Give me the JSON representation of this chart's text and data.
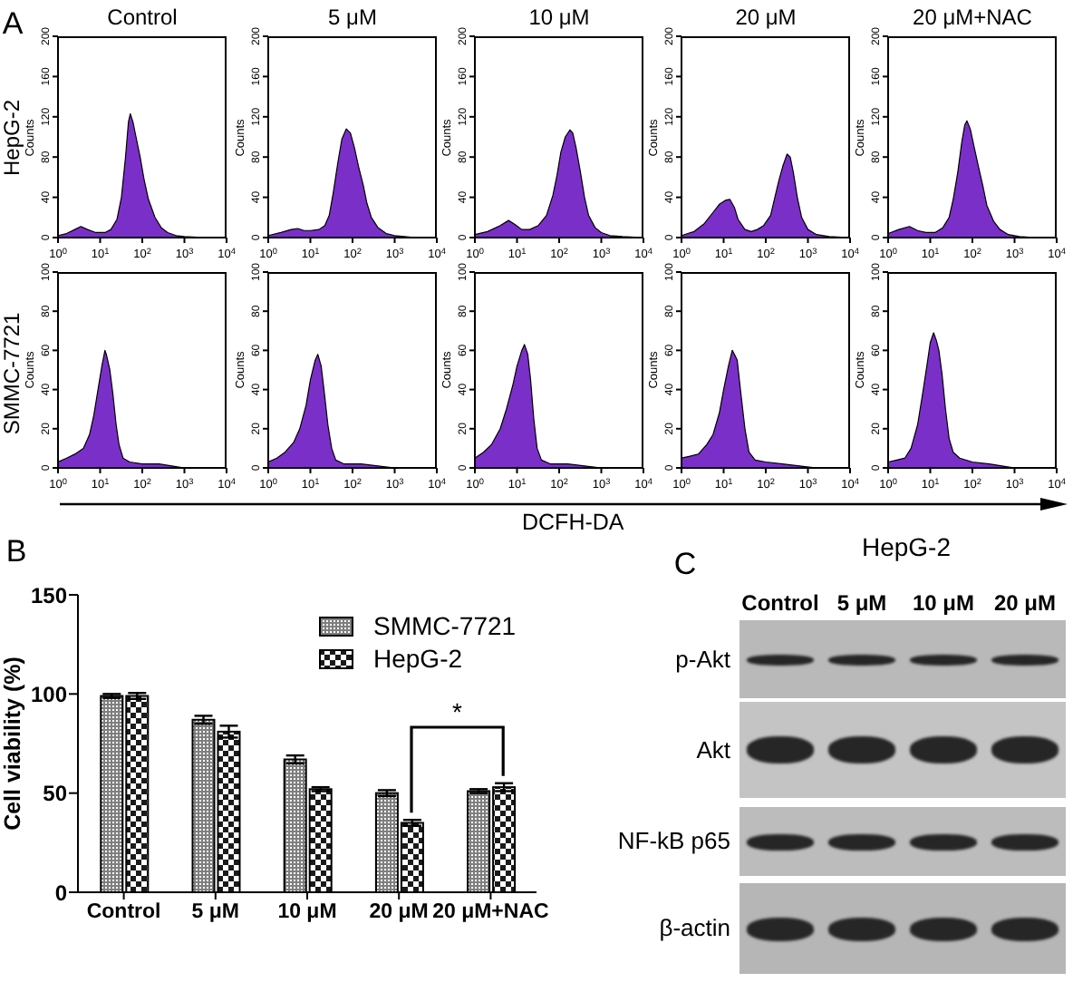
{
  "chart_data": [
    {
      "type": "area",
      "title": "Control",
      "x": [
        1,
        1.6,
        2.5,
        3.5,
        5,
        7.9,
        13,
        18,
        25,
        32,
        40,
        47,
        52,
        60,
        71,
        89,
        110,
        140,
        200,
        280,
        400,
        630,
        1000,
        3200,
        10000
      ],
      "values": [
        2,
        4,
        8,
        11,
        8,
        5,
        5,
        8,
        18,
        40,
        80,
        115,
        123,
        115,
        100,
        80,
        58,
        38,
        20,
        10,
        5,
        2,
        1,
        0,
        0
      ],
      "color": "#7b2fc9",
      "xlim": [
        1,
        10000
      ],
      "xticks": [
        {
          "value": 1,
          "label": "10$^{0}$"
        },
        {
          "value": 10,
          "label": "10$^{1}$"
        },
        {
          "value": 100,
          "label": "10$^{2}$"
        },
        {
          "value": 1000,
          "label": "10$^{3}$"
        },
        {
          "value": 10000,
          "label": "10$^{4}$"
        }
      ],
      "ylim": [
        0,
        200
      ],
      "yticks": [
        0,
        40,
        80,
        120,
        160,
        200
      ],
      "ylabel": "Counts",
      "log": "x",
      "annotations": [
        "A",
        "HepG-2"
      ]
    },
    {
      "type": "area",
      "title": "5 μM",
      "x": [
        1,
        2,
        3.5,
        5,
        7.1,
        10,
        16,
        22,
        28,
        35,
        45,
        56,
        71,
        89,
        110,
        140,
        180,
        220,
        280,
        400,
        630,
        1000,
        3200,
        10000
      ],
      "values": [
        2,
        5,
        8,
        9,
        7,
        7,
        8,
        12,
        22,
        45,
        75,
        98,
        108,
        104,
        90,
        70,
        52,
        34,
        20,
        10,
        4,
        2,
        0,
        0
      ],
      "color": "#7b2fc9",
      "xlim": [
        1,
        10000
      ],
      "xticks": [
        {
          "value": 1,
          "label": "10$^{0}$"
        },
        {
          "value": 10,
          "label": "10$^{1}$"
        },
        {
          "value": 100,
          "label": "10$^{2}$"
        },
        {
          "value": 1000,
          "label": "10$^{3}$"
        },
        {
          "value": 10000,
          "label": "10$^{4}$"
        }
      ],
      "ylim": [
        0,
        200
      ],
      "yticks": [
        0,
        40,
        80,
        120,
        160,
        200
      ],
      "ylabel": "Counts",
      "log": "x"
    },
    {
      "type": "area",
      "title": "10 μM",
      "x": [
        1,
        2,
        4,
        6.3,
        8.9,
        13,
        20,
        32,
        50,
        71,
        89,
        110,
        140,
        180,
        210,
        250,
        320,
        400,
        500,
        710,
        1000,
        1600,
        3200,
        10000
      ],
      "values": [
        3,
        6,
        12,
        17,
        13,
        8,
        8,
        12,
        22,
        42,
        62,
        85,
        100,
        107,
        104,
        90,
        65,
        40,
        22,
        10,
        5,
        2,
        1,
        0
      ],
      "color": "#7b2fc9",
      "xlim": [
        1,
        10000
      ],
      "xticks": [
        {
          "value": 1,
          "label": "10$^{0}$"
        },
        {
          "value": 10,
          "label": "10$^{1}$"
        },
        {
          "value": 100,
          "label": "10$^{2}$"
        },
        {
          "value": 1000,
          "label": "10$^{3}$"
        },
        {
          "value": 10000,
          "label": "10$^{4}$"
        }
      ],
      "ylim": [
        0,
        200
      ],
      "yticks": [
        0,
        40,
        80,
        120,
        160,
        200
      ],
      "ylabel": "Counts",
      "log": "x"
    },
    {
      "type": "area",
      "title": "20 μM",
      "x": [
        1,
        2,
        3.5,
        5.6,
        7.9,
        11,
        14,
        18,
        22,
        32,
        45,
        63,
        89,
        130,
        160,
        200,
        250,
        320,
        380,
        450,
        560,
        710,
        1000,
        1600,
        3200,
        10000
      ],
      "values": [
        2,
        6,
        14,
        25,
        33,
        37,
        38,
        30,
        18,
        8,
        6,
        8,
        12,
        22,
        38,
        55,
        70,
        83,
        80,
        65,
        40,
        20,
        8,
        3,
        1,
        0
      ],
      "color": "#7b2fc9",
      "xlim": [
        1,
        10000
      ],
      "xticks": [
        {
          "value": 1,
          "label": "10$^{0}$"
        },
        {
          "value": 10,
          "label": "10$^{1}$"
        },
        {
          "value": 100,
          "label": "10$^{2}$"
        },
        {
          "value": 1000,
          "label": "10$^{3}$"
        },
        {
          "value": 10000,
          "label": "10$^{4}$"
        }
      ],
      "ylim": [
        0,
        200
      ],
      "yticks": [
        0,
        40,
        80,
        120,
        160,
        200
      ],
      "ylabel": "Counts",
      "log": "x"
    },
    {
      "type": "area",
      "title": "20 μM+NAC",
      "x": [
        1,
        1.8,
        3.2,
        5,
        7.9,
        13,
        20,
        28,
        35,
        45,
        56,
        66,
        74,
        89,
        110,
        140,
        180,
        220,
        320,
        450,
        710,
        1300,
        3200,
        10000
      ],
      "values": [
        4,
        8,
        11,
        7,
        5,
        5,
        10,
        20,
        38,
        65,
        95,
        112,
        116,
        108,
        90,
        70,
        50,
        32,
        16,
        8,
        3,
        1,
        0,
        0
      ],
      "color": "#7b2fc9",
      "xlim": [
        1,
        10000
      ],
      "xticks": [
        {
          "value": 1,
          "label": "10$^{0}$"
        },
        {
          "value": 10,
          "label": "10$^{1}$"
        },
        {
          "value": 100,
          "label": "10$^{2}$"
        },
        {
          "value": 1000,
          "label": "10$^{3}$"
        },
        {
          "value": 10000,
          "label": "10$^{4}$"
        }
      ],
      "ylim": [
        0,
        200
      ],
      "yticks": [
        0,
        40,
        80,
        120,
        160,
        200
      ],
      "ylabel": "Counts",
      "log": "x"
    },
    {
      "type": "area",
      "x": [
        1,
        1.6,
        2.5,
        4,
        5.6,
        7.1,
        8.9,
        11,
        13,
        14,
        17,
        20,
        24,
        28,
        35,
        50,
        100,
        250,
        500,
        1000,
        10000
      ],
      "values": [
        3,
        5,
        7,
        10,
        17,
        27,
        40,
        52,
        60,
        58,
        50,
        38,
        22,
        12,
        5,
        3,
        2,
        2,
        1,
        0,
        0
      ],
      "color": "#7b2fc9",
      "xlim": [
        1,
        10000
      ],
      "xticks": [
        {
          "value": 1,
          "label": "10$^{0}$"
        },
        {
          "value": 10,
          "label": "10$^{1}$"
        },
        {
          "value": 100,
          "label": "10$^{2}$"
        },
        {
          "value": 1000,
          "label": "10$^{3}$"
        },
        {
          "value": 10000,
          "label": "10$^{4}$"
        }
      ],
      "ylim": [
        0,
        100
      ],
      "yticks": [
        0,
        20,
        40,
        60,
        80,
        100
      ],
      "ylabel": "Counts",
      "log": "x",
      "annotations": [
        "SMMC-7721"
      ]
    },
    {
      "type": "area",
      "x": [
        1,
        1.6,
        2.5,
        4,
        5.6,
        7.9,
        10,
        13,
        15,
        18,
        21,
        26,
        32,
        40,
        63,
        160,
        400,
        1000,
        10000
      ],
      "values": [
        3,
        5,
        8,
        13,
        20,
        32,
        45,
        55,
        58,
        52,
        40,
        22,
        10,
        4,
        2,
        2,
        1,
        0,
        0
      ],
      "color": "#7b2fc9",
      "xlim": [
        1,
        10000
      ],
      "xticks": [
        {
          "value": 1,
          "label": "10$^{0}$"
        },
        {
          "value": 10,
          "label": "10$^{1}$"
        },
        {
          "value": 100,
          "label": "10$^{2}$"
        },
        {
          "value": 1000,
          "label": "10$^{3}$"
        },
        {
          "value": 10000,
          "label": "10$^{4}$"
        }
      ],
      "ylim": [
        0,
        100
      ],
      "yticks": [
        0,
        20,
        40,
        60,
        80,
        100
      ],
      "ylabel": "Counts",
      "log": "x"
    },
    {
      "type": "area",
      "x": [
        1,
        1.6,
        2.5,
        4,
        5.6,
        7.9,
        10,
        13,
        15,
        18,
        21,
        25,
        30,
        38,
        63,
        160,
        400,
        1000,
        10000
      ],
      "values": [
        5,
        8,
        12,
        20,
        30,
        42,
        52,
        60,
        63,
        58,
        45,
        25,
        10,
        4,
        2,
        2,
        1,
        0,
        0
      ],
      "color": "#7b2fc9",
      "xlim": [
        1,
        10000
      ],
      "xticks": [
        {
          "value": 1,
          "label": "10$^{0}$"
        },
        {
          "value": 10,
          "label": "10$^{1}$"
        },
        {
          "value": 100,
          "label": "10$^{2}$"
        },
        {
          "value": 1000,
          "label": "10$^{3}$"
        },
        {
          "value": 10000,
          "label": "10$^{4}$"
        }
      ],
      "ylim": [
        0,
        100
      ],
      "yticks": [
        0,
        20,
        40,
        60,
        80,
        100
      ],
      "ylabel": "Counts",
      "xlabel": "DCFH-DA",
      "log": "x"
    },
    {
      "type": "area",
      "x": [
        1,
        1.6,
        2.5,
        4,
        5.6,
        7.9,
        10,
        13,
        16,
        18,
        21,
        25,
        32,
        40,
        56,
        100,
        250,
        630,
        1600,
        10000
      ],
      "values": [
        5,
        6,
        7,
        12,
        17,
        28,
        40,
        52,
        60,
        58,
        55,
        40,
        20,
        8,
        4,
        3,
        2,
        1,
        0,
        0
      ],
      "color": "#7b2fc9",
      "xlim": [
        1,
        10000
      ],
      "xticks": [
        {
          "value": 1,
          "label": "10$^{0}$"
        },
        {
          "value": 10,
          "label": "10$^{1}$"
        },
        {
          "value": 100,
          "label": "10$^{2}$"
        },
        {
          "value": 1000,
          "label": "10$^{3}$"
        },
        {
          "value": 10000,
          "label": "10$^{4}$"
        }
      ],
      "ylim": [
        0,
        100
      ],
      "yticks": [
        0,
        20,
        40,
        60,
        80,
        100
      ],
      "ylabel": "Counts",
      "log": "x"
    },
    {
      "type": "area",
      "x": [
        1,
        1.6,
        2.5,
        3.5,
        5,
        6.6,
        8.3,
        10,
        12,
        14,
        16,
        19,
        23,
        28,
        35,
        50,
        100,
        250,
        500,
        1000,
        10000
      ],
      "values": [
        3,
        4,
        5,
        10,
        22,
        38,
        52,
        64,
        69,
        65,
        60,
        48,
        30,
        15,
        8,
        5,
        3,
        2,
        1,
        0,
        0
      ],
      "color": "#7b2fc9",
      "xlim": [
        1,
        10000
      ],
      "xticks": [
        {
          "value": 1,
          "label": "10$^{0}$"
        },
        {
          "value": 10,
          "label": "10$^{1}$"
        },
        {
          "value": 100,
          "label": "10$^{2}$"
        },
        {
          "value": 1000,
          "label": "10$^{3}$"
        },
        {
          "value": 10000,
          "label": "10$^{4}$"
        }
      ],
      "ylim": [
        0,
        100
      ],
      "yticks": [
        0,
        20,
        40,
        60,
        80,
        100
      ],
      "ylabel": "Counts",
      "log": "x"
    },
    {
      "type": "bar",
      "categories": [
        "Control",
        "5 μM",
        "10 μM",
        "20 μM",
        "20 μM+NAC"
      ],
      "series": [
        {
          "name": "SMMC-7721",
          "color": "#7f7f7f",
          "values": [
            99,
            87,
            67,
            50,
            51
          ],
          "errors": [
            1,
            2,
            2,
            1.5,
            1
          ]
        },
        {
          "name": "HepG-2",
          "color": "#1a1a1a",
          "values": [
            99,
            81,
            52,
            35,
            53
          ],
          "errors": [
            1.5,
            3,
            1,
            1.5,
            2
          ]
        }
      ],
      "ylabel": "Cell viability (%)",
      "ylim": [
        0,
        150
      ],
      "yticks": [
        0,
        50,
        100,
        150
      ],
      "legend": "top right",
      "annotations": [
        "B",
        "*"
      ]
    },
    {
      "type": "other",
      "title": "HepG-2",
      "categories": [
        "Control",
        "5 μM",
        "10 μM",
        "20 μM"
      ],
      "y_categories": [
        "p-Akt",
        "Akt",
        "NF-kB p65",
        "β-actin"
      ],
      "annotations": [
        "C"
      ]
    }
  ]
}
